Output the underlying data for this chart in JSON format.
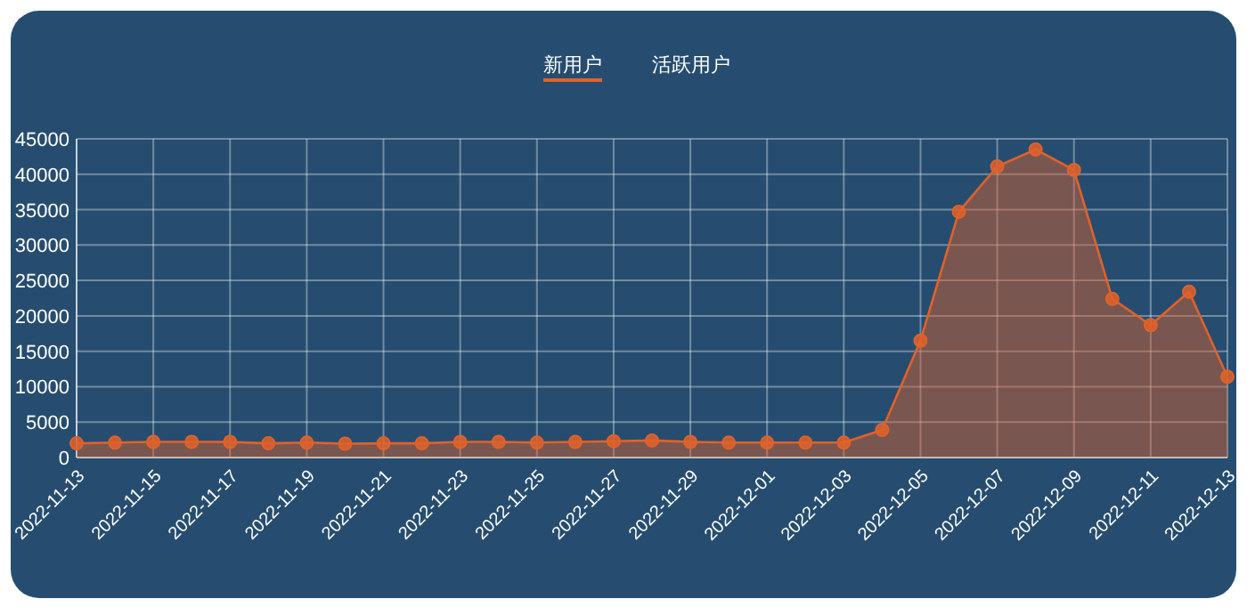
{
  "chart_data": {
    "type": "area",
    "categories": [
      "2022-11-13",
      null,
      "2022-11-15",
      null,
      "2022-11-17",
      null,
      "2022-11-19",
      null,
      "2022-11-21",
      null,
      "2022-11-23",
      null,
      "2022-11-25",
      null,
      "2022-11-27",
      null,
      "2022-11-29",
      null,
      "2022-12-01",
      null,
      "2022-12-03",
      null,
      "2022-12-05",
      null,
      "2022-12-07",
      null,
      "2022-12-09",
      null,
      "2022-12-11",
      null,
      "2022-12-13"
    ],
    "series": [
      {
        "name": "新用户",
        "color": "#e0622a",
        "values": [
          2000,
          2100,
          2200,
          2200,
          2200,
          2000,
          2100,
          1950,
          2000,
          2000,
          2200,
          2200,
          2100,
          2200,
          2300,
          2400,
          2200,
          2100,
          2100,
          2100,
          2100,
          3900,
          16500,
          34700,
          41100,
          43500,
          40600,
          22400,
          18700,
          23400,
          11400
        ]
      },
      {
        "name": "活跃用户",
        "values": [
          null,
          null,
          null,
          null,
          null,
          null,
          null,
          null,
          null,
          null,
          null,
          null,
          null,
          null,
          null,
          null,
          null,
          null,
          null,
          null,
          null,
          null,
          null,
          null,
          null,
          null,
          null,
          null,
          null,
          null,
          null
        ]
      }
    ],
    "ylim": [
      0,
      45000
    ],
    "yticks": [
      0,
      5000,
      10000,
      15000,
      20000,
      25000,
      30000,
      35000,
      40000,
      45000
    ],
    "grid": true,
    "legend": "top",
    "marker": "circle"
  }
}
